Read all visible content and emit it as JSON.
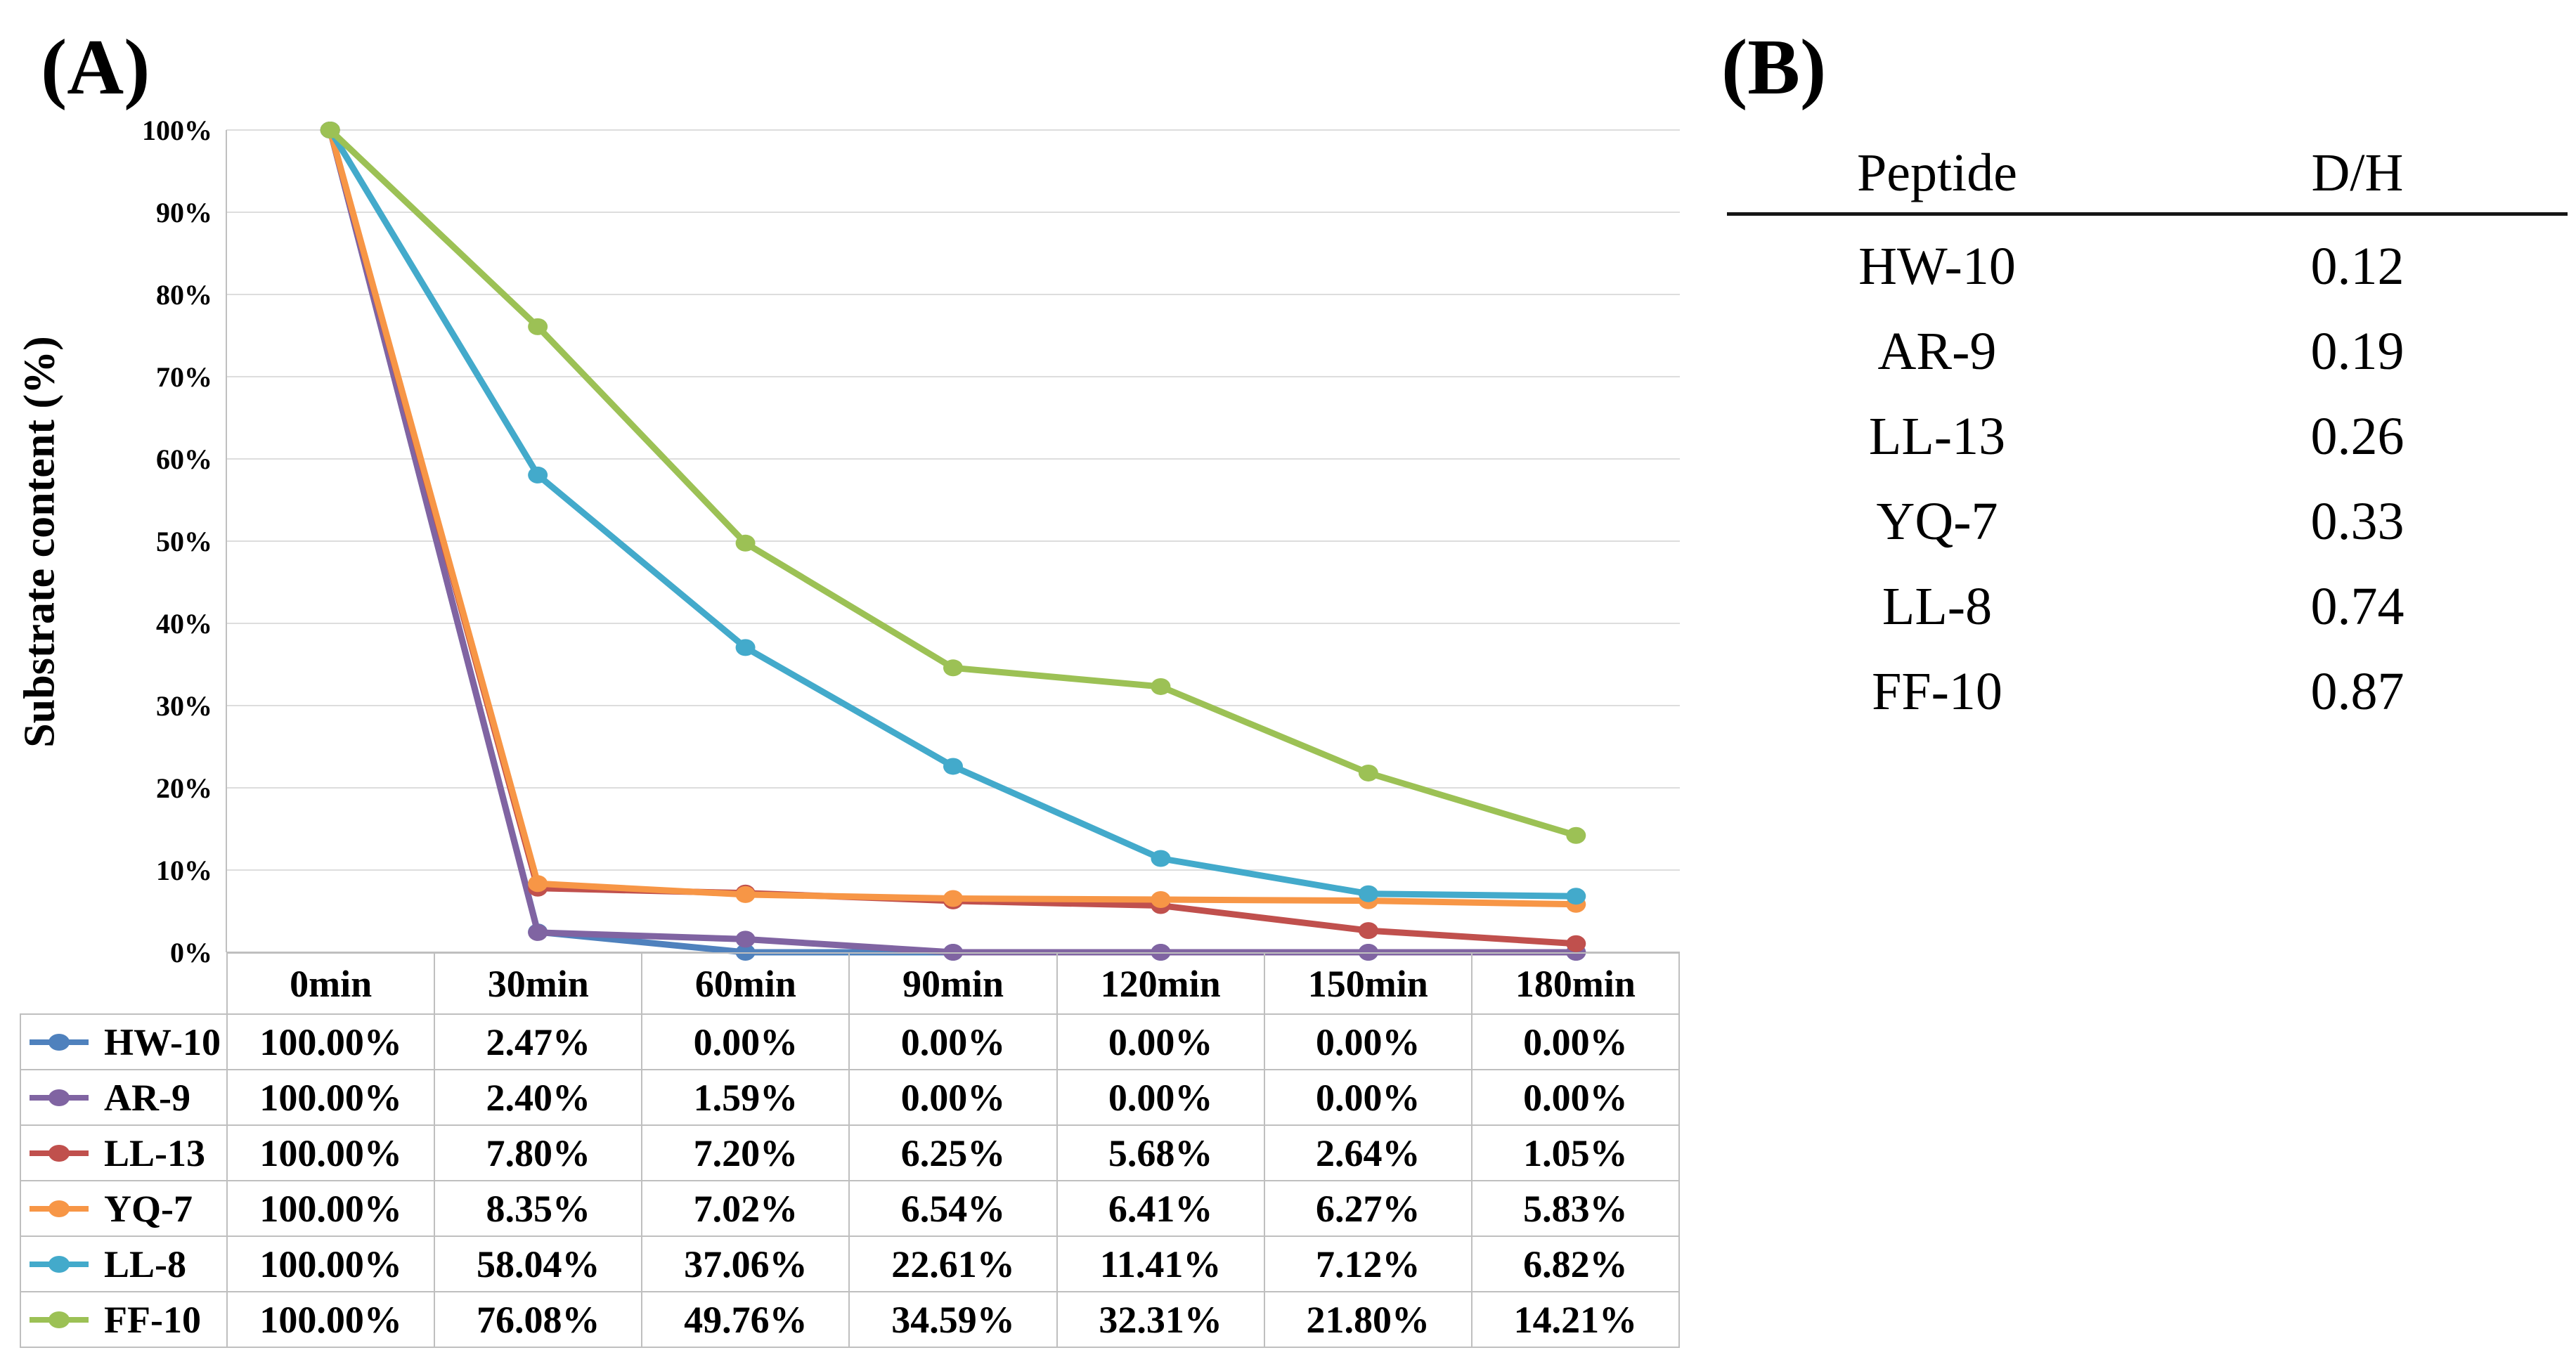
{
  "figure": {
    "panel_a_label": "(A)",
    "panel_b_label": "(B)"
  },
  "chart_data": [
    {
      "type": "line",
      "title": "",
      "xlabel": "",
      "ylabel": "Substrate content (%)",
      "ylim": [
        0,
        100
      ],
      "grid": "horizontal",
      "legend_position": "data-table-left-column",
      "y_tick_labels": [
        "0%",
        "10%",
        "20%",
        "30%",
        "40%",
        "50%",
        "60%",
        "70%",
        "80%",
        "90%",
        "100%"
      ],
      "categories": [
        "0min",
        "30min",
        "60min",
        "90min",
        "120min",
        "150min",
        "180min"
      ],
      "series": [
        {
          "name": "HW-10",
          "color": "#4F81BD",
          "values": [
            100.0,
            2.47,
            0.0,
            0.0,
            0.0,
            0.0,
            0.0
          ],
          "labels": [
            "100.00%",
            "2.47%",
            "0.00%",
            "0.00%",
            "0.00%",
            "0.00%",
            "0.00%"
          ]
        },
        {
          "name": "AR-9",
          "color": "#8064A2",
          "values": [
            100.0,
            2.4,
            1.59,
            0.0,
            0.0,
            0.0,
            0.0
          ],
          "labels": [
            "100.00%",
            "2.40%",
            "1.59%",
            "0.00%",
            "0.00%",
            "0.00%",
            "0.00%"
          ]
        },
        {
          "name": "LL-13",
          "color": "#C0504D",
          "values": [
            100.0,
            7.8,
            7.2,
            6.25,
            5.68,
            2.64,
            1.05
          ],
          "labels": [
            "100.00%",
            "7.80%",
            "7.20%",
            "6.25%",
            "5.68%",
            "2.64%",
            "1.05%"
          ]
        },
        {
          "name": "YQ-7",
          "color": "#F79646",
          "values": [
            100.0,
            8.35,
            7.02,
            6.54,
            6.41,
            6.27,
            5.83
          ],
          "labels": [
            "100.00%",
            "8.35%",
            "7.02%",
            "6.54%",
            "6.41%",
            "6.27%",
            "5.83%"
          ]
        },
        {
          "name": "LL-8",
          "color": "#43AACB",
          "values": [
            100.0,
            58.04,
            37.06,
            22.61,
            11.41,
            7.12,
            6.82
          ],
          "labels": [
            "100.00%",
            "58.04%",
            "37.06%",
            "22.61%",
            "11.41%",
            "7.12%",
            "6.82%"
          ]
        },
        {
          "name": "FF-10",
          "color": "#9CC155",
          "values": [
            100.0,
            76.08,
            49.76,
            34.59,
            32.31,
            21.8,
            14.21
          ],
          "labels": [
            "100.00%",
            "76.08%",
            "49.76%",
            "34.59%",
            "32.31%",
            "21.80%",
            "14.21%"
          ]
        }
      ],
      "colors": {
        "gridline": "#DDDDDD",
        "axis": "#BFBFBF",
        "table_border": "#BFBFBF",
        "text": "#000000"
      }
    },
    {
      "type": "table",
      "columns": [
        "Peptide",
        "D/H"
      ],
      "rows": [
        [
          "HW-10",
          "0.12"
        ],
        [
          "AR-9",
          "0.19"
        ],
        [
          "LL-13",
          "0.26"
        ],
        [
          "YQ-7",
          "0.33"
        ],
        [
          "LL-8",
          "0.74"
        ],
        [
          "FF-10",
          "0.87"
        ]
      ]
    }
  ]
}
